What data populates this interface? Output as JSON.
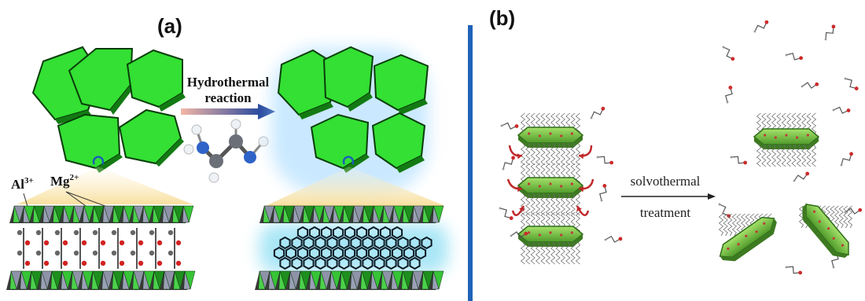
{
  "panel_a": {
    "label": "(a)",
    "arrow_label_line1": "Hydrothermal",
    "arrow_label_line2": "reaction",
    "ion_al": "Al",
    "ion_al_charge": "3+",
    "ion_mg": "Mg",
    "ion_mg_charge": "2+"
  },
  "panel_b": {
    "label": "(b)",
    "arrow_label_line1": "solvothermal",
    "arrow_label_line2": "treatment"
  },
  "colors": {
    "platelet_green": "#33e033",
    "platelet_edge": "#0a3d0a",
    "glow": "#9fd7ff",
    "divider_blue": "#1e63b8",
    "curved_arrow_red": "#c0282a",
    "plate_green_b": "#7cc84a"
  }
}
